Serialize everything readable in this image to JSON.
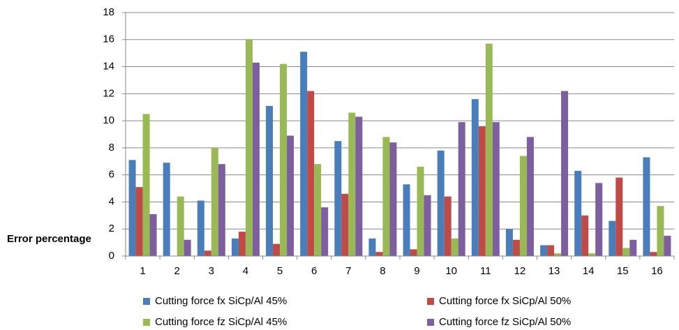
{
  "chart_data": {
    "type": "bar",
    "y_label": "Error percentage",
    "categories": [
      "1",
      "2",
      "3",
      "4",
      "5",
      "6",
      "7",
      "8",
      "9",
      "10",
      "11",
      "12",
      "13",
      "14",
      "15",
      "16"
    ],
    "series": [
      {
        "name": "Cutting force fx SiCp/Al 45%",
        "color": "#4a7ebb",
        "values": [
          7.1,
          6.9,
          4.1,
          1.3,
          11.1,
          15.1,
          8.5,
          1.3,
          5.3,
          7.8,
          11.6,
          2.0,
          0.8,
          6.3,
          2.6,
          7.3
        ]
      },
      {
        "name": "Cutting force fx SiCp/Al 50%",
        "color": "#be4b48",
        "values": [
          5.1,
          0,
          0.4,
          1.8,
          0.9,
          12.2,
          4.6,
          0.3,
          0.5,
          4.4,
          9.6,
          1.2,
          0.8,
          3.0,
          5.8,
          0.3
        ]
      },
      {
        "name": "Cutting force fz SiCp/Al 45%",
        "color": "#98b954",
        "values": [
          10.5,
          4.4,
          8.0,
          16.0,
          14.2,
          6.8,
          10.6,
          8.8,
          6.6,
          1.3,
          15.7,
          7.4,
          0.2,
          0.2,
          0.6,
          3.7
        ]
      },
      {
        "name": "Cutting force fz SiCp/Al 50%",
        "color": "#7d5fa0",
        "values": [
          3.1,
          1.2,
          6.8,
          14.3,
          8.9,
          3.6,
          10.3,
          8.4,
          4.5,
          9.9,
          9.9,
          8.8,
          12.2,
          5.4,
          1.2,
          1.5
        ]
      }
    ],
    "ylim": [
      0,
      18
    ],
    "yticks": [
      0,
      2,
      4,
      6,
      8,
      10,
      12,
      14,
      16,
      18
    ],
    "grid": true,
    "legend": "bottom"
  }
}
